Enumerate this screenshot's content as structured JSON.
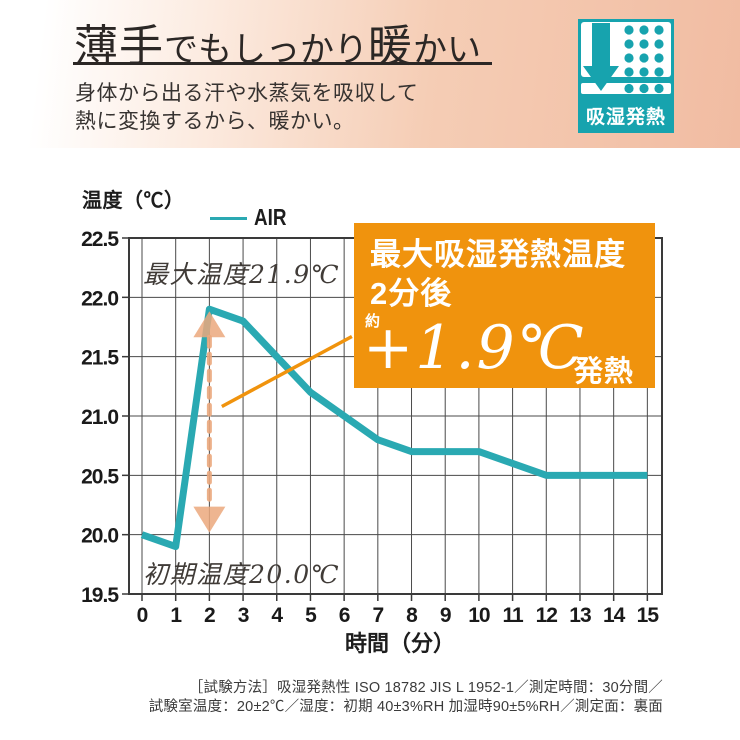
{
  "header": {
    "title_part1": "薄手",
    "title_part2": "でもしっかり",
    "title_part3": "暖",
    "title_part4": "かい",
    "subtitle_line1": "身体から出る汗や水蒸気を吸収して",
    "subtitle_line2": "熱に変換するから、暖かい。",
    "badge_label": "吸湿発熱"
  },
  "chart_data": {
    "type": "line",
    "title": "",
    "ylabel": "温度（℃）",
    "xlabel": "時間（分）",
    "x": [
      0,
      1,
      2,
      3,
      4,
      5,
      6,
      7,
      8,
      9,
      10,
      11,
      12,
      13,
      14,
      15
    ],
    "series": [
      {
        "name": "AIR",
        "values": [
          20.0,
          19.9,
          21.9,
          21.8,
          21.5,
          21.2,
          21.0,
          20.8,
          20.7,
          20.7,
          20.7,
          20.6,
          20.5,
          20.5,
          20.5,
          20.5
        ]
      }
    ],
    "ylim": [
      19.5,
      22.5
    ],
    "yticks": [
      "19.5",
      "20.0",
      "20.5",
      "21.0",
      "21.5",
      "22.0",
      "22.5"
    ],
    "grid": true,
    "legend_position": "top-left",
    "annotations": {
      "max_temp_label": "最大温度21.9℃",
      "init_temp_label": "初期温度20.0℃",
      "arrow": {
        "x": 2,
        "from": 20.0,
        "to": 21.9
      },
      "leader_line": {
        "from_x": 2.37,
        "from_y": 21.08,
        "to_x": 6.23,
        "to_y": 21.67
      }
    }
  },
  "callout": {
    "line1": "最大吸湿発熱温度",
    "line2": "2分後",
    "approx": "約",
    "value": "+1.9℃",
    "suffix": "発熱"
  },
  "footer": {
    "line1": "［試験方法］吸湿発熱性 ISO 18782 JIS L 1952-1／測定時間：30分間／",
    "line2": "試験室温度：20±2℃／湿度：初期 40±3%RH 加湿時90±5%RH／測定面：裏面"
  },
  "colors": {
    "accent_teal": "#2aa9b2",
    "icon_teal": "#17a3ae",
    "accent_orange": "#f0930d",
    "arrow_peach": "#eba87d",
    "header_peach": "#f1bca2",
    "grid_line": "#4a4a4a",
    "axis_line": "#3a3a3a"
  }
}
